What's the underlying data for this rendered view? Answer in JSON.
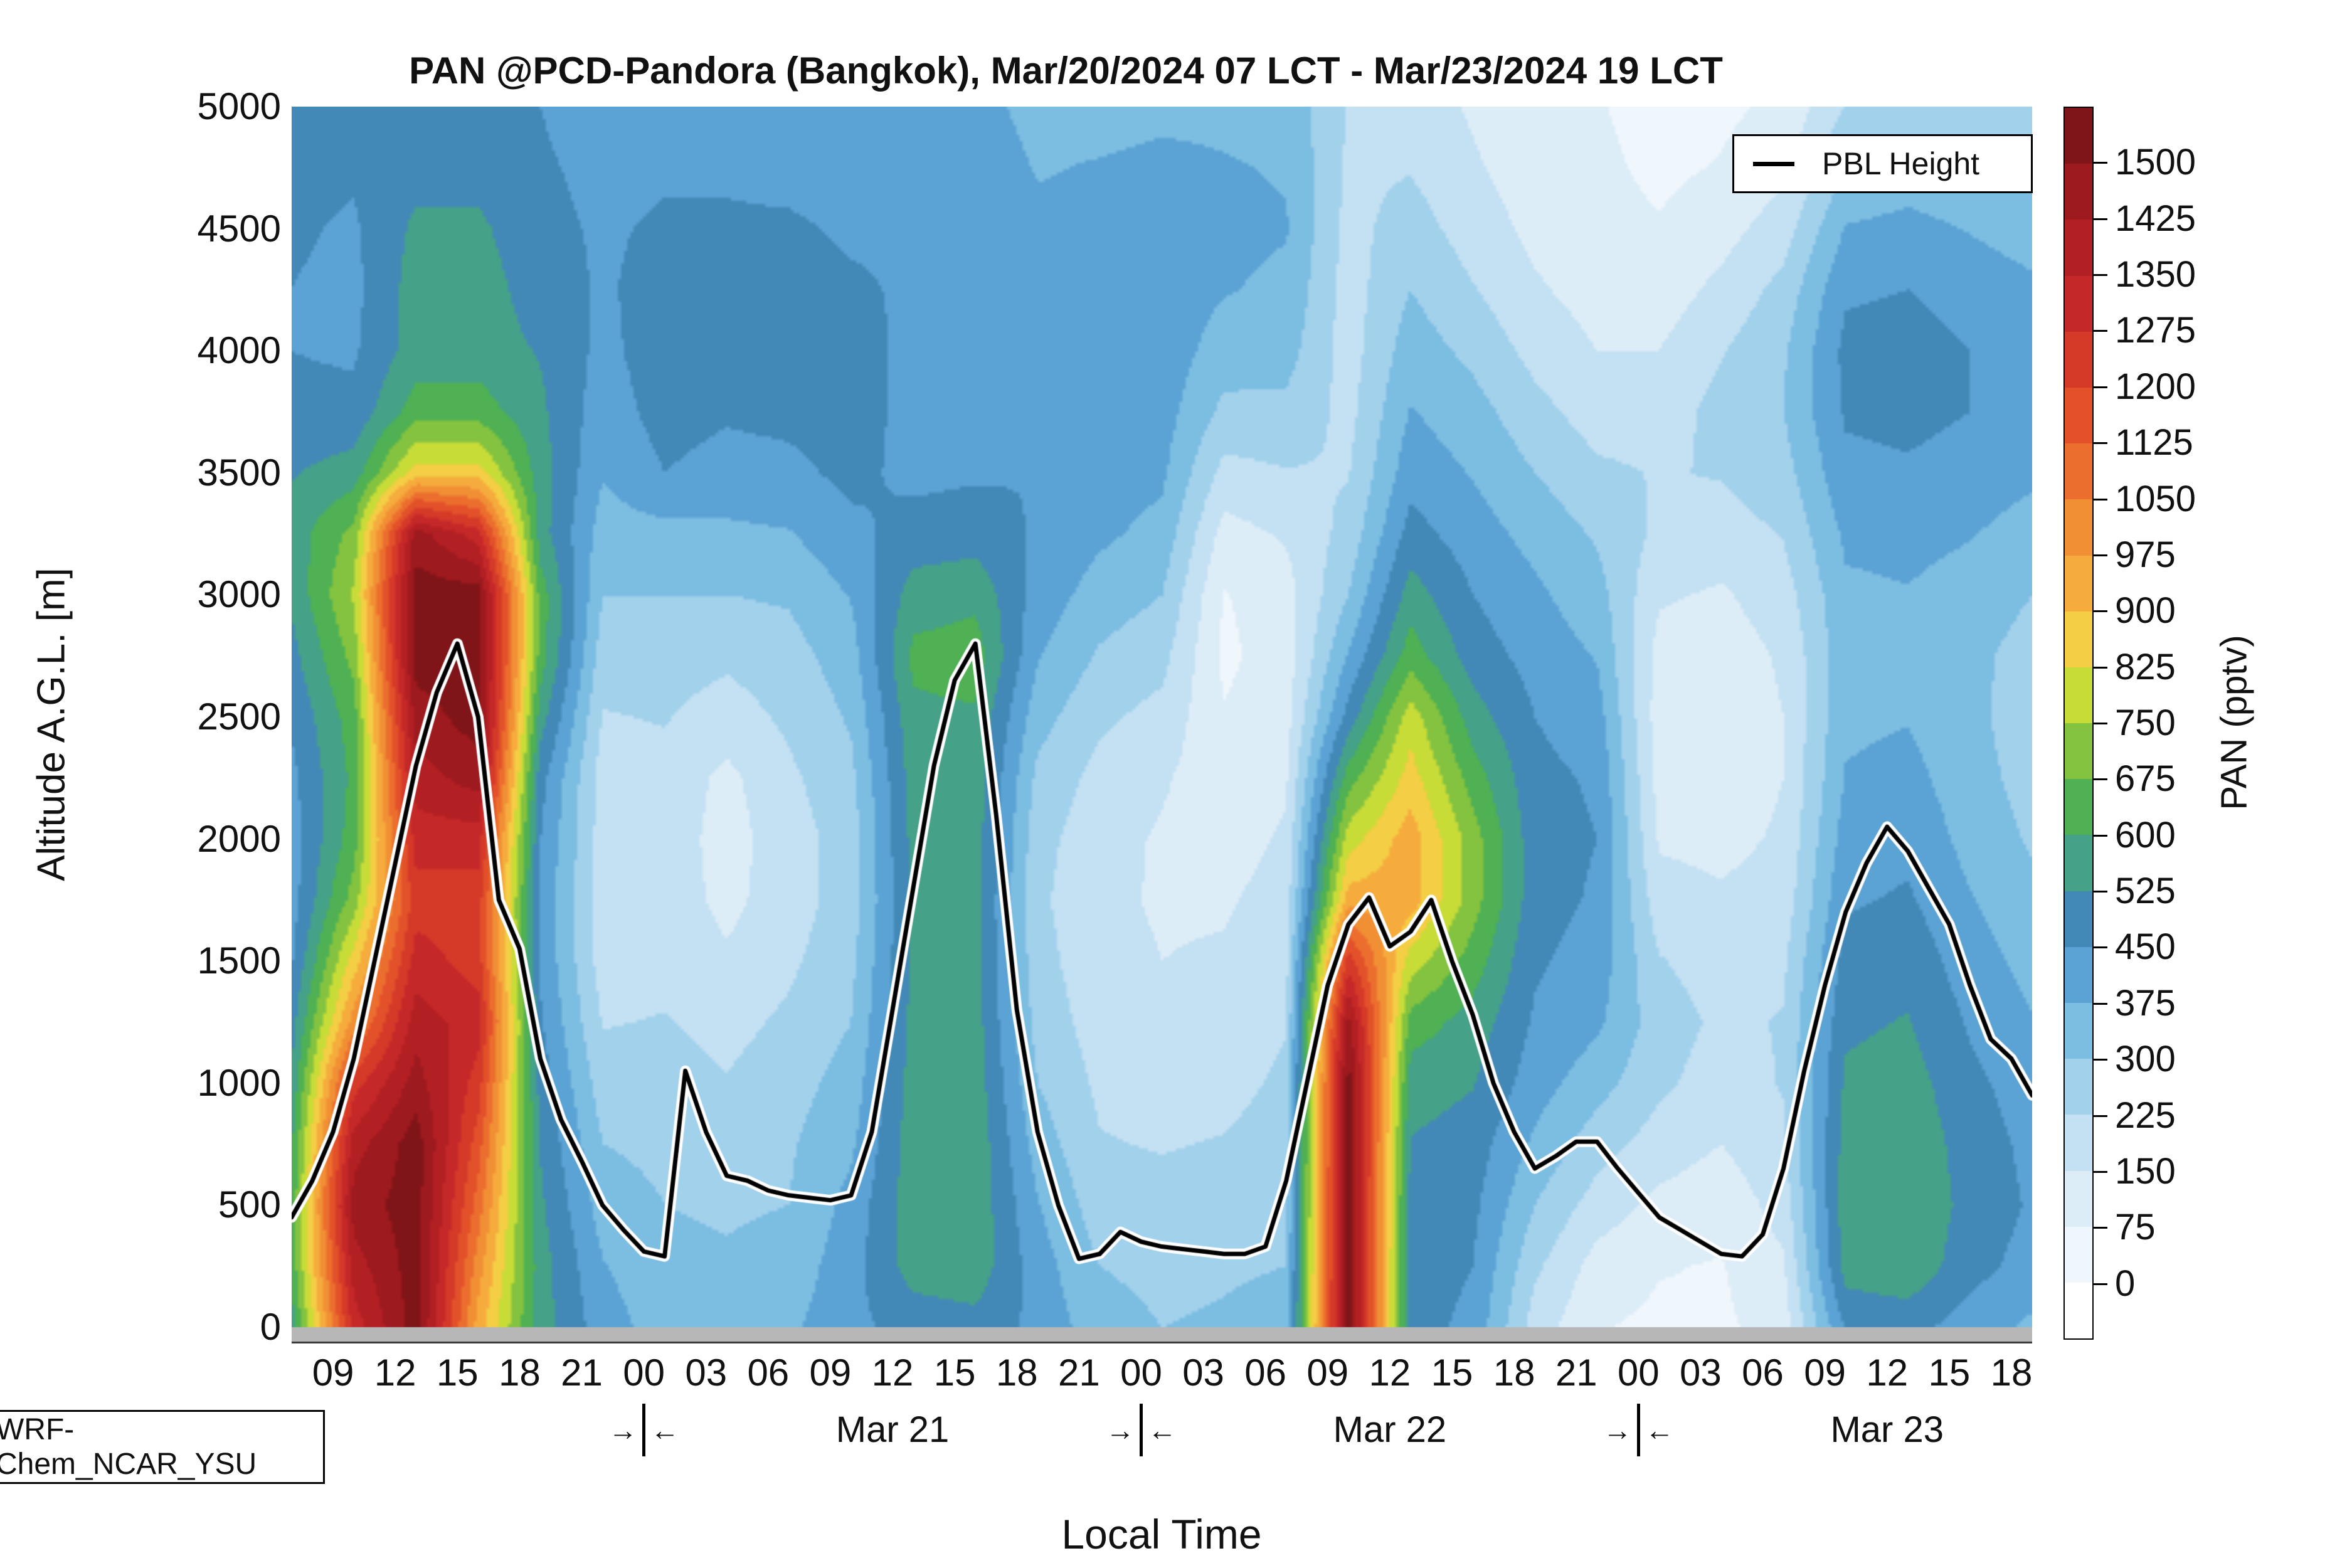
{
  "chart_data": {
    "type": "heatmap",
    "title": "PAN @PCD-Pandora (Bangkok), Mar/20/2024 07 LCT - Mar/23/2024 19 LCT",
    "xlabel": "Local Time",
    "ylabel": "Altitude A.G.L. [m]",
    "model_label": "WRF-Chem_NCAR_YSU",
    "legend": {
      "label": "PBL Height",
      "line_color": "#000000"
    },
    "x_axis": {
      "start": "Mar/20/2024 07:00 LCT",
      "end": "Mar/23/2024 19:00 LCT",
      "total_hours": 84,
      "tick_hours": [
        2,
        5,
        8,
        11,
        14,
        17,
        20,
        23,
        26,
        29,
        32,
        35,
        38,
        41,
        44,
        47,
        50,
        53,
        56,
        59,
        62,
        65,
        68,
        71,
        74,
        77,
        80,
        83
      ],
      "tick_labels": [
        "09",
        "12",
        "15",
        "18",
        "21",
        "00",
        "03",
        "06",
        "09",
        "12",
        "15",
        "18",
        "21",
        "00",
        "03",
        "06",
        "09",
        "12",
        "15",
        "18",
        "21",
        "00",
        "03",
        "06",
        "09",
        "12",
        "15",
        "18"
      ],
      "day_separators_hours": [
        17,
        41,
        65
      ],
      "day_labels": [
        {
          "label": "Mar 21",
          "hour": 29
        },
        {
          "label": "Mar 22",
          "hour": 53
        },
        {
          "label": "Mar 23",
          "hour": 77
        }
      ]
    },
    "y_axis": {
      "min": 0,
      "max": 5000,
      "ticks": [
        0,
        500,
        1000,
        1500,
        2000,
        2500,
        3000,
        3500,
        4000,
        4500,
        5000
      ]
    },
    "colorbar": {
      "label": "PAN (pptv)",
      "tick_values": [
        0,
        75,
        150,
        225,
        300,
        375,
        450,
        525,
        600,
        675,
        750,
        825,
        900,
        975,
        1050,
        1125,
        1200,
        1275,
        1350,
        1425,
        1500
      ],
      "band_step": 75,
      "band_min": -75,
      "band_max": 1575,
      "band_colors_low_to_high": [
        "#ffffff",
        "#f0f7fc",
        "#ddedf8",
        "#c3e1f3",
        "#a2d1ec",
        "#7cbde2",
        "#5ba3d4",
        "#4389b8",
        "#46a189",
        "#4fb153",
        "#84c340",
        "#c8dc38",
        "#f4ce44",
        "#f6ab3d",
        "#f18f35",
        "#ec6e2e",
        "#e2512a",
        "#d53928",
        "#c52828",
        "#b32024",
        "#9d1a1f",
        "#7f1518"
      ]
    },
    "grid": {
      "time_hours": [
        0,
        3,
        6,
        9,
        12,
        15,
        18,
        21,
        24,
        27,
        30,
        33,
        36,
        39,
        42,
        45,
        48,
        51,
        54,
        57,
        60,
        63,
        66,
        69,
        72,
        75,
        78,
        81,
        84
      ],
      "altitudes_m": [
        0,
        250,
        500,
        750,
        1000,
        1250,
        1500,
        1750,
        2000,
        2250,
        2500,
        2750,
        3000,
        3250,
        3500,
        3750,
        4000,
        4250,
        4500,
        4750,
        5000
      ],
      "values_pptv": [
        [
          560,
          620,
          620,
          590,
          540,
          490,
          440,
          415,
          415,
          430,
          460,
          500,
          540,
          560,
          520,
          470,
          450,
          450,
          460,
          480,
          490
        ],
        [
          1310,
          1390,
          1460,
          1390,
          1240,
          1010,
          860,
          710,
          640,
          620,
          640,
          700,
          760,
          700,
          560,
          470,
          440,
          430,
          440,
          460,
          470
        ],
        [
          1540,
          1540,
          1540,
          1540,
          1460,
          1390,
          1310,
          1240,
          1310,
          1390,
          1460,
          1540,
          1540,
          1460,
          860,
          640,
          560,
          560,
          540,
          500,
          480
        ],
        [
          940,
          1010,
          1090,
          1160,
          1240,
          1310,
          1240,
          1240,
          1310,
          1460,
          1540,
          1540,
          1540,
          1310,
          860,
          640,
          560,
          560,
          540,
          500,
          480
        ],
        [
          560,
          560,
          540,
          520,
          490,
          460,
          440,
          430,
          450,
          480,
          560,
          640,
          640,
          560,
          560,
          540,
          520,
          490,
          470,
          460,
          450
        ],
        [
          410,
          380,
          340,
          300,
          260,
          220,
          190,
          190,
          190,
          190,
          220,
          260,
          300,
          340,
          380,
          410,
          430,
          440,
          440,
          430,
          410
        ],
        [
          340,
          320,
          300,
          280,
          260,
          230,
          200,
          190,
          190,
          200,
          230,
          260,
          300,
          350,
          450,
          480,
          490,
          480,
          460,
          440,
          420
        ],
        [
          340,
          310,
          290,
          260,
          230,
          200,
          160,
          130,
          120,
          130,
          190,
          240,
          300,
          360,
          420,
          460,
          480,
          480,
          460,
          440,
          420
        ],
        [
          360,
          330,
          300,
          290,
          270,
          240,
          210,
          190,
          190,
          210,
          240,
          270,
          310,
          370,
          430,
          470,
          490,
          480,
          460,
          430,
          410
        ],
        [
          430,
          420,
          400,
          360,
          330,
          300,
          280,
          260,
          260,
          280,
          310,
          340,
          380,
          430,
          470,
          490,
          480,
          460,
          440,
          420,
          400
        ],
        [
          480,
          560,
          570,
          570,
          560,
          550,
          540,
          540,
          550,
          560,
          580,
          620,
          560,
          480,
          430,
          420,
          430,
          440,
          440,
          430,
          410
        ],
        [
          500,
          570,
          580,
          580,
          570,
          560,
          550,
          550,
          560,
          570,
          590,
          640,
          580,
          490,
          440,
          420,
          420,
          430,
          430,
          420,
          400
        ],
        [
          430,
          410,
          380,
          340,
          300,
          270,
          250,
          240,
          250,
          280,
          330,
          380,
          420,
          440,
          450,
          440,
          430,
          410,
          390,
          370,
          350
        ],
        [
          330,
          300,
          260,
          230,
          210,
          190,
          180,
          170,
          180,
          200,
          240,
          290,
          340,
          390,
          420,
          430,
          430,
          420,
          400,
          380,
          350
        ],
        [
          300,
          280,
          250,
          220,
          190,
          170,
          150,
          140,
          140,
          160,
          200,
          250,
          300,
          350,
          390,
          410,
          420,
          420,
          410,
          390,
          360
        ],
        [
          310,
          290,
          260,
          230,
          200,
          180,
          160,
          140,
          120,
          100,
          80,
          60,
          70,
          120,
          200,
          280,
          340,
          380,
          390,
          380,
          360
        ],
        [
          330,
          300,
          280,
          260,
          240,
          220,
          200,
          180,
          160,
          140,
          120,
          110,
          120,
          160,
          220,
          280,
          330,
          360,
          380,
          370,
          350
        ],
        [
          1540,
          1540,
          1540,
          1540,
          1540,
          1460,
          1240,
          940,
          790,
          640,
          480,
          380,
          300,
          250,
          220,
          200,
          190,
          190,
          200,
          210,
          220
        ],
        [
          480,
          490,
          500,
          520,
          560,
          640,
          790,
          940,
          940,
          860,
          790,
          640,
          560,
          480,
          420,
          380,
          340,
          300,
          260,
          220,
          190
        ],
        [
          430,
          450,
          470,
          490,
          530,
          570,
          640,
          710,
          710,
          640,
          560,
          490,
          450,
          410,
          370,
          330,
          280,
          230,
          190,
          160,
          140
        ],
        [
          190,
          240,
          300,
          360,
          410,
          440,
          460,
          480,
          480,
          470,
          450,
          420,
          390,
          350,
          300,
          250,
          200,
          160,
          130,
          110,
          100
        ],
        [
          80,
          120,
          190,
          260,
          330,
          390,
          420,
          440,
          450,
          440,
          410,
          370,
          330,
          290,
          240,
          190,
          150,
          120,
          100,
          90,
          80
        ],
        [
          60,
          80,
          130,
          190,
          240,
          260,
          230,
          180,
          140,
          120,
          110,
          120,
          160,
          210,
          220,
          190,
          150,
          110,
          80,
          60,
          50
        ],
        [
          60,
          70,
          100,
          150,
          190,
          210,
          190,
          160,
          130,
          110,
          100,
          110,
          140,
          190,
          230,
          250,
          220,
          170,
          120,
          80,
          60
        ],
        [
          110,
          140,
          180,
          210,
          230,
          230,
          210,
          180,
          160,
          150,
          150,
          160,
          190,
          230,
          270,
          300,
          290,
          250,
          190,
          130,
          90
        ],
        [
          460,
          560,
          570,
          560,
          540,
          510,
          480,
          440,
          410,
          380,
          360,
          350,
          360,
          390,
          430,
          460,
          470,
          440,
          380,
          300,
          230
        ],
        [
          480,
          580,
          590,
          580,
          560,
          530,
          500,
          460,
          430,
          400,
          370,
          360,
          370,
          400,
          440,
          470,
          480,
          450,
          400,
          330,
          260
        ],
        [
          410,
          480,
          500,
          490,
          470,
          440,
          410,
          380,
          350,
          330,
          320,
          320,
          340,
          380,
          420,
          450,
          450,
          420,
          370,
          310,
          250
        ],
        [
          360,
          420,
          440,
          430,
          410,
          380,
          350,
          320,
          290,
          270,
          260,
          270,
          300,
          340,
          390,
          420,
          420,
          390,
          340,
          290,
          230
        ]
      ]
    },
    "pbl_height": {
      "time_hours_step": 1,
      "values_m": [
        450,
        600,
        800,
        1100,
        1500,
        1900,
        2300,
        2600,
        2800,
        2500,
        1750,
        1550,
        1100,
        850,
        680,
        500,
        400,
        310,
        290,
        1050,
        800,
        620,
        600,
        560,
        540,
        530,
        520,
        540,
        800,
        1300,
        1800,
        2300,
        2650,
        2800,
        2100,
        1300,
        800,
        500,
        280,
        300,
        390,
        350,
        330,
        320,
        310,
        300,
        300,
        330,
        600,
        1000,
        1400,
        1650,
        1760,
        1560,
        1620,
        1750,
        1500,
        1280,
        1000,
        800,
        650,
        700,
        760,
        760,
        650,
        550,
        450,
        400,
        350,
        300,
        290,
        380,
        650,
        1050,
        1400,
        1700,
        1900,
        2050,
        1950,
        1800,
        1650,
        1400,
        1180,
        1100,
        950
      ]
    },
    "below_ground_band_color": "#b7b7b7",
    "pbl_line_style": {
      "color": "#000000",
      "halo_color": "#ffffff"
    }
  }
}
